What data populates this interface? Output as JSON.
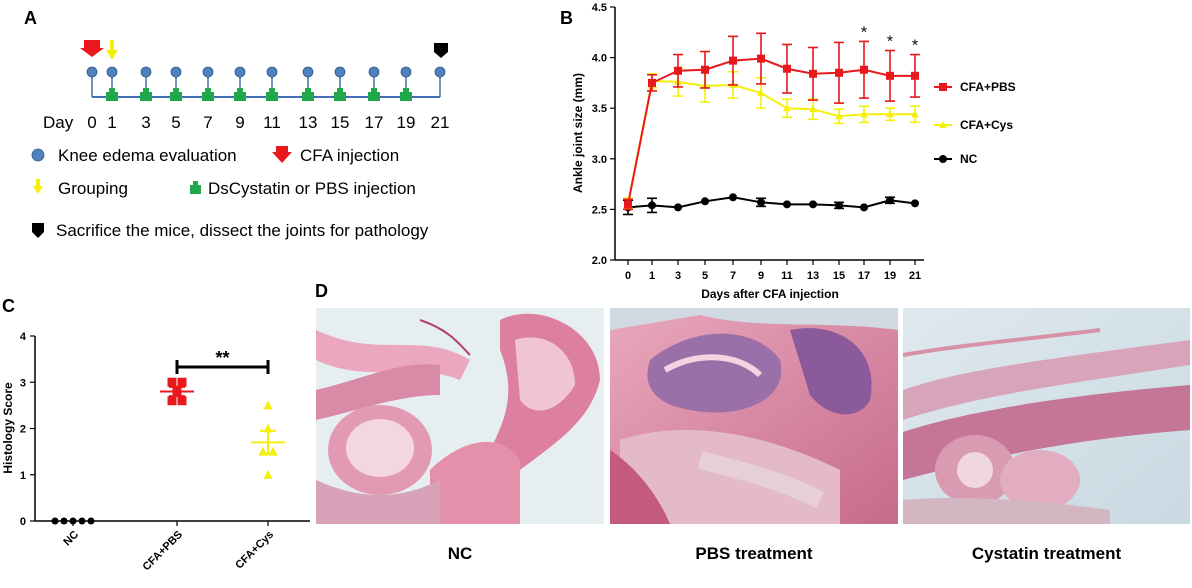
{
  "panels": {
    "a": {
      "letter": "A",
      "day_prefix": "Day",
      "days": [
        "0",
        "1",
        "3",
        "5",
        "7",
        "9",
        "11",
        "13",
        "15",
        "17",
        "19",
        "21"
      ],
      "legend": {
        "knee": "Knee edema evaluation",
        "cfa": "CFA injection",
        "grouping": "Grouping",
        "ds": "DsCystatin or PBS injection",
        "sacrifice": "Sacrifice the mice, dissect the joints for pathology"
      }
    },
    "b": {
      "letter": "B"
    },
    "c": {
      "letter": "C"
    },
    "d": {
      "letter": "D",
      "captions": [
        "NC",
        "PBS treatment",
        "Cystatin treatment"
      ]
    }
  },
  "colors": {
    "red": "#e8181c",
    "yellow": "#f5f00a",
    "black": "#000000",
    "blue_node": "#4f81bd",
    "green": "#21a84a",
    "timeline": "#3f6fb0"
  },
  "chart_data": [
    {
      "type": "line",
      "title": "",
      "xlabel": "Days after CFA injection",
      "ylabel": "Ankle joint size (mm)",
      "ylim": [
        2.0,
        4.5
      ],
      "yticks": [
        "2.0",
        "2.5",
        "3.0",
        "3.5",
        "4.0",
        "4.5"
      ],
      "categories": [
        "0",
        "1",
        "3",
        "5",
        "7",
        "9",
        "11",
        "13",
        "15",
        "17",
        "19",
        "21"
      ],
      "significance": [
        {
          "category": "17",
          "label": "*"
        },
        {
          "category": "19",
          "label": "*"
        },
        {
          "category": "21",
          "label": "*"
        }
      ],
      "legend_position": "right",
      "series": [
        {
          "name": "CFA+PBS",
          "marker": "square",
          "values": [
            2.55,
            3.75,
            3.87,
            3.88,
            3.97,
            3.99,
            3.89,
            3.84,
            3.85,
            3.88,
            3.82,
            3.82
          ],
          "errors": [
            0.05,
            0.08,
            0.16,
            0.18,
            0.24,
            0.25,
            0.24,
            0.26,
            0.3,
            0.28,
            0.25,
            0.21
          ]
        },
        {
          "name": "CFA+Cys",
          "marker": "triangle",
          "values": [
            2.56,
            3.77,
            3.76,
            3.72,
            3.73,
            3.65,
            3.5,
            3.49,
            3.42,
            3.44,
            3.44,
            3.44
          ],
          "errors": [
            0.05,
            0.07,
            0.14,
            0.16,
            0.13,
            0.15,
            0.09,
            0.1,
            0.07,
            0.08,
            0.06,
            0.08
          ]
        },
        {
          "name": "NC",
          "marker": "circle",
          "values": [
            2.52,
            2.54,
            2.52,
            2.58,
            2.62,
            2.57,
            2.55,
            2.55,
            2.54,
            2.52,
            2.59,
            2.56
          ],
          "errors": [
            0.07,
            0.07,
            0.0,
            0.0,
            0.0,
            0.04,
            0.0,
            0.0,
            0.03,
            0.0,
            0.03,
            0.0
          ]
        }
      ]
    },
    {
      "type": "scatter",
      "title": "",
      "xlabel": "",
      "ylabel": "Histology Score",
      "ylim": [
        0,
        4
      ],
      "yticks": [
        "0",
        "1",
        "2",
        "3",
        "4"
      ],
      "categories": [
        "NC",
        "CFA+PBS",
        "CFA+Cys"
      ],
      "significance": [
        {
          "between": [
            "CFA+PBS",
            "CFA+Cys"
          ],
          "label": "**"
        }
      ],
      "series": [
        {
          "name": "NC",
          "marker": "circle",
          "points": [
            0,
            0,
            0,
            0,
            0
          ],
          "mean": 0,
          "sem": 0
        },
        {
          "name": "CFA+PBS",
          "marker": "square",
          "points": [
            3.0,
            3.0,
            2.8,
            2.6,
            2.6
          ],
          "mean": 2.8,
          "sem": 0.1
        },
        {
          "name": "CFA+Cys",
          "marker": "triangle",
          "points": [
            2.5,
            2.0,
            1.5,
            1.5,
            1.0
          ],
          "mean": 1.7,
          "sem": 0.25
        }
      ]
    }
  ]
}
